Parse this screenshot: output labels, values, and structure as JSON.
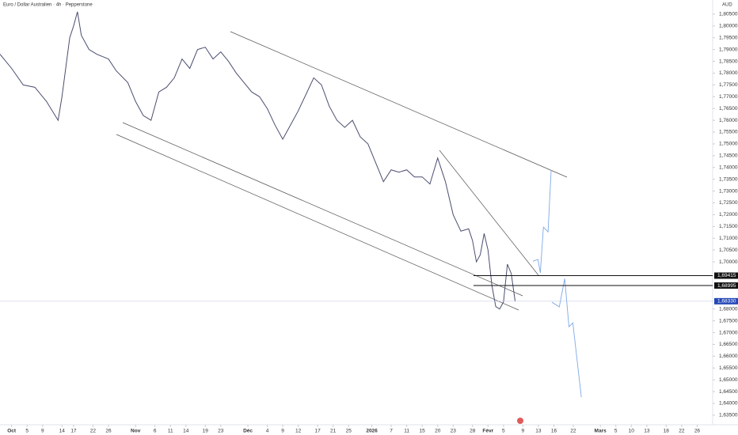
{
  "chart_data": {
    "type": "line",
    "title": "Euro / Dollar Australien · 4h · Pepperstone",
    "currency": "AUD",
    "xlim": [
      -3,
      181
    ],
    "ylim": [
      1.6333,
      1.811
    ],
    "series": [
      {
        "name": "EURAUD",
        "color": "#4a4e6e",
        "x": [
          -3,
          0,
          3,
          6,
          9,
          12,
          13,
          15,
          16,
          17,
          18,
          20,
          22,
          25,
          27,
          30,
          32,
          34,
          36,
          38,
          40,
          42,
          44,
          46,
          48,
          50,
          52,
          54,
          56,
          58,
          60,
          62,
          64,
          66,
          68,
          70,
          72,
          74,
          76,
          78,
          80,
          82,
          84,
          86,
          88,
          90,
          92,
          94,
          96,
          98,
          100,
          102,
          104,
          106,
          108,
          110,
          112,
          114,
          116,
          118,
          119,
          120,
          121,
          122,
          123,
          124,
          125,
          126,
          127,
          128,
          129,
          130
        ],
        "values": [
          1.788,
          1.782,
          1.775,
          1.774,
          1.768,
          1.76,
          1.77,
          1.795,
          1.8,
          1.806,
          1.796,
          1.79,
          1.788,
          1.786,
          1.781,
          1.776,
          1.768,
          1.762,
          1.76,
          1.772,
          1.774,
          1.778,
          1.786,
          1.782,
          1.79,
          1.791,
          1.786,
          1.789,
          1.785,
          1.78,
          1.776,
          1.772,
          1.77,
          1.765,
          1.758,
          1.752,
          1.758,
          1.764,
          1.771,
          1.778,
          1.775,
          1.766,
          1.76,
          1.757,
          1.76,
          1.753,
          1.75,
          1.742,
          1.734,
          1.739,
          1.738,
          1.739,
          1.736,
          1.736,
          1.733,
          1.744,
          1.734,
          1.72,
          1.713,
          1.714,
          1.709,
          1.7,
          1.703,
          1.712,
          1.705,
          1.69,
          1.681,
          1.68,
          1.683,
          1.699,
          1.695,
          1.6833
        ]
      },
      {
        "name": "Projection A",
        "color": "#7fa8e8",
        "x": [
          134.6,
          135.9,
          136.5,
          137.3,
          138.5,
          139.3
        ],
        "values": [
          1.7003,
          1.701,
          1.6953,
          1.7147,
          1.7127,
          1.7389
        ]
      },
      {
        "name": "Projection B",
        "color": "#7fa8e8",
        "x": [
          139.5,
          141.4,
          142.8,
          143.9,
          144.9,
          147.1
        ],
        "values": [
          1.6829,
          1.6809,
          1.6929,
          1.6725,
          1.6741,
          1.6426
        ]
      }
    ],
    "levels": [
      {
        "value": 1.69415,
        "label": "1,69415"
      },
      {
        "value": 1.68995,
        "label": "1,68995"
      }
    ],
    "last_price": {
      "value": 1.6833,
      "label": "1,68330"
    },
    "yticks": [
      {
        "value": 1.805,
        "label": "1,80500"
      },
      {
        "value": 1.8,
        "label": "1,80000"
      },
      {
        "value": 1.795,
        "label": "1,79500"
      },
      {
        "value": 1.79,
        "label": "1,79000"
      },
      {
        "value": 1.785,
        "label": "1,78500"
      },
      {
        "value": 1.78,
        "label": "1,78000"
      },
      {
        "value": 1.775,
        "label": "1,77500"
      },
      {
        "value": 1.77,
        "label": "1,77000"
      },
      {
        "value": 1.765,
        "label": "1,76500"
      },
      {
        "value": 1.76,
        "label": "1,76000"
      },
      {
        "value": 1.755,
        "label": "1,75500"
      },
      {
        "value": 1.75,
        "label": "1,75000"
      },
      {
        "value": 1.745,
        "label": "1,74500"
      },
      {
        "value": 1.74,
        "label": "1,74000"
      },
      {
        "value": 1.735,
        "label": "1,73500"
      },
      {
        "value": 1.73,
        "label": "1,73000"
      },
      {
        "value": 1.725,
        "label": "1,72500"
      },
      {
        "value": 1.72,
        "label": "1,72000"
      },
      {
        "value": 1.715,
        "label": "1,71500"
      },
      {
        "value": 1.71,
        "label": "1,71000"
      },
      {
        "value": 1.705,
        "label": "1,70500"
      },
      {
        "value": 1.7,
        "label": "1,70000"
      },
      {
        "value": 1.68,
        "label": "1,68000"
      },
      {
        "value": 1.675,
        "label": "1,67500"
      },
      {
        "value": 1.67,
        "label": "1,67000"
      },
      {
        "value": 1.665,
        "label": "1,66500"
      },
      {
        "value": 1.66,
        "label": "1,66000"
      },
      {
        "value": 1.655,
        "label": "1,65500"
      },
      {
        "value": 1.65,
        "label": "1,65000"
      },
      {
        "value": 1.645,
        "label": "1,64500"
      },
      {
        "value": 1.64,
        "label": "1,64000"
      },
      {
        "value": 1.635,
        "label": "1,63500"
      }
    ],
    "xticks": [
      {
        "value": 0,
        "label": "Oct"
      },
      {
        "value": 4,
        "label": "5"
      },
      {
        "value": 8,
        "label": "9"
      },
      {
        "value": 13,
        "label": "14"
      },
      {
        "value": 16,
        "label": "17"
      },
      {
        "value": 21,
        "label": "22"
      },
      {
        "value": 25,
        "label": "26"
      },
      {
        "value": 32,
        "label": "Nov"
      },
      {
        "value": 37,
        "label": "6"
      },
      {
        "value": 41,
        "label": "11"
      },
      {
        "value": 45,
        "label": "14"
      },
      {
        "value": 50,
        "label": "19"
      },
      {
        "value": 54,
        "label": "23"
      },
      {
        "value": 61,
        "label": "Déc"
      },
      {
        "value": 66,
        "label": "4"
      },
      {
        "value": 70,
        "label": "9"
      },
      {
        "value": 74,
        "label": "12"
      },
      {
        "value": 79,
        "label": "17"
      },
      {
        "value": 83,
        "label": "21"
      },
      {
        "value": 87,
        "label": "25"
      },
      {
        "value": 93,
        "label": "2026"
      },
      {
        "value": 98,
        "label": "7"
      },
      {
        "value": 102,
        "label": "11"
      },
      {
        "value": 106,
        "label": "15"
      },
      {
        "value": 110,
        "label": "20"
      },
      {
        "value": 114,
        "label": "23"
      },
      {
        "value": 119,
        "label": "28"
      },
      {
        "value": 123,
        "label": "Févr"
      },
      {
        "value": 127,
        "label": "5"
      },
      {
        "value": 132,
        "label": "9"
      },
      {
        "value": 136,
        "label": "13"
      },
      {
        "value": 140,
        "label": "16"
      },
      {
        "value": 145,
        "label": "22"
      },
      {
        "value": 152,
        "label": "Mars"
      },
      {
        "value": 156,
        "label": "5"
      },
      {
        "value": 160,
        "label": "10"
      },
      {
        "value": 164,
        "label": "13"
      },
      {
        "value": 169,
        "label": "18"
      },
      {
        "value": 173,
        "label": "22"
      },
      {
        "value": 177,
        "label": "26"
      }
    ]
  }
}
